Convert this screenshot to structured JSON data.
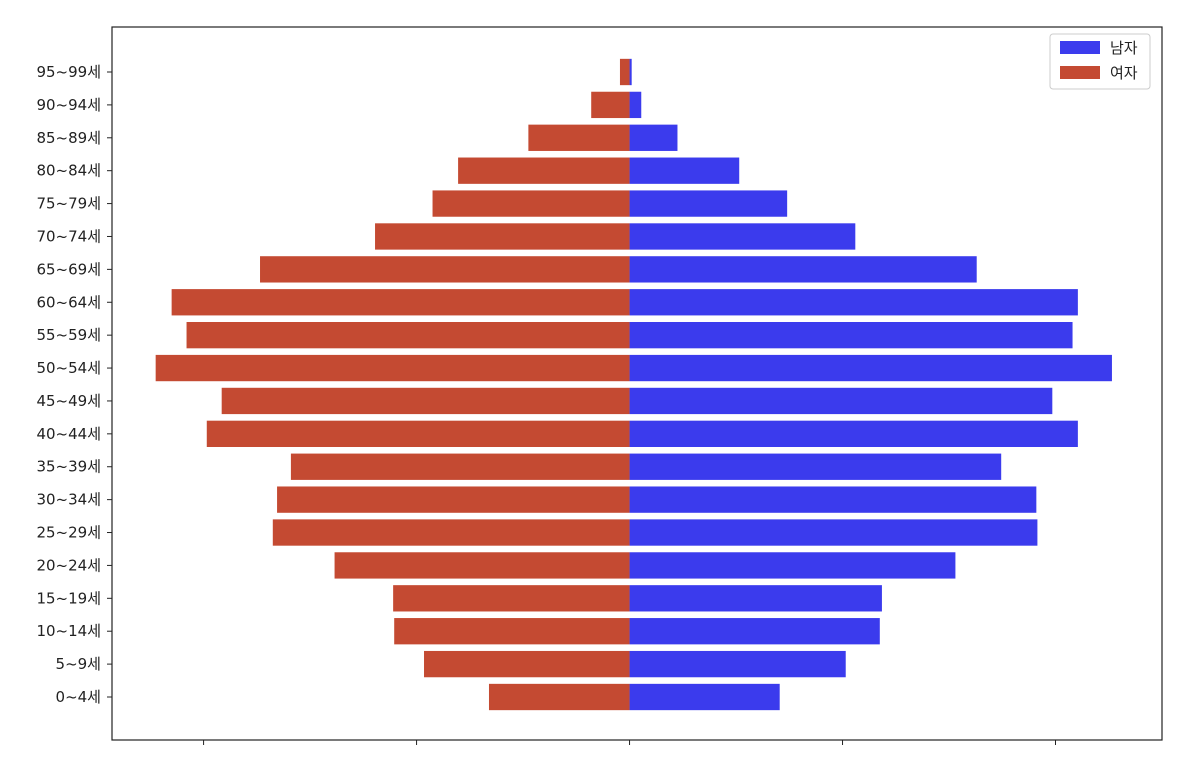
{
  "chart_data": {
    "type": "bar",
    "orientation": "horizontal",
    "chart_style": "population-pyramid",
    "categories": [
      "0~4세",
      "5~9세",
      "10~14세",
      "15~19세",
      "20~24세",
      "25~29세",
      "30~34세",
      "35~39세",
      "40~44세",
      "45~49세",
      "50~54세",
      "55~59세",
      "60~64세",
      "65~69세",
      "70~74세",
      "75~79세",
      "80~84세",
      "85~89세",
      "90~94세",
      "95~99세"
    ],
    "series": [
      {
        "name": "남자",
        "color": "#3b3bed",
        "direction": "right",
        "values": [
          70.5,
          101.5,
          117.5,
          118.5,
          153,
          191.5,
          191,
          174.5,
          210.5,
          198.5,
          226.5,
          208,
          210.5,
          163,
          106,
          74,
          51.5,
          22.5,
          5.5,
          1
        ]
      },
      {
        "name": "여자",
        "color": "#c44a32",
        "direction": "left",
        "values": [
          66,
          96.5,
          110.5,
          111,
          138.5,
          167.5,
          165.5,
          159,
          198.5,
          191.5,
          222.5,
          208,
          215,
          173.5,
          119.5,
          92.5,
          80.5,
          47.5,
          18,
          4.5
        ]
      }
    ],
    "xlim": [
      -243,
      250
    ],
    "xticks": [
      -200,
      -100,
      0,
      100,
      200
    ],
    "xtick_labels_visible": false,
    "grid": false,
    "legend": "upper right"
  }
}
